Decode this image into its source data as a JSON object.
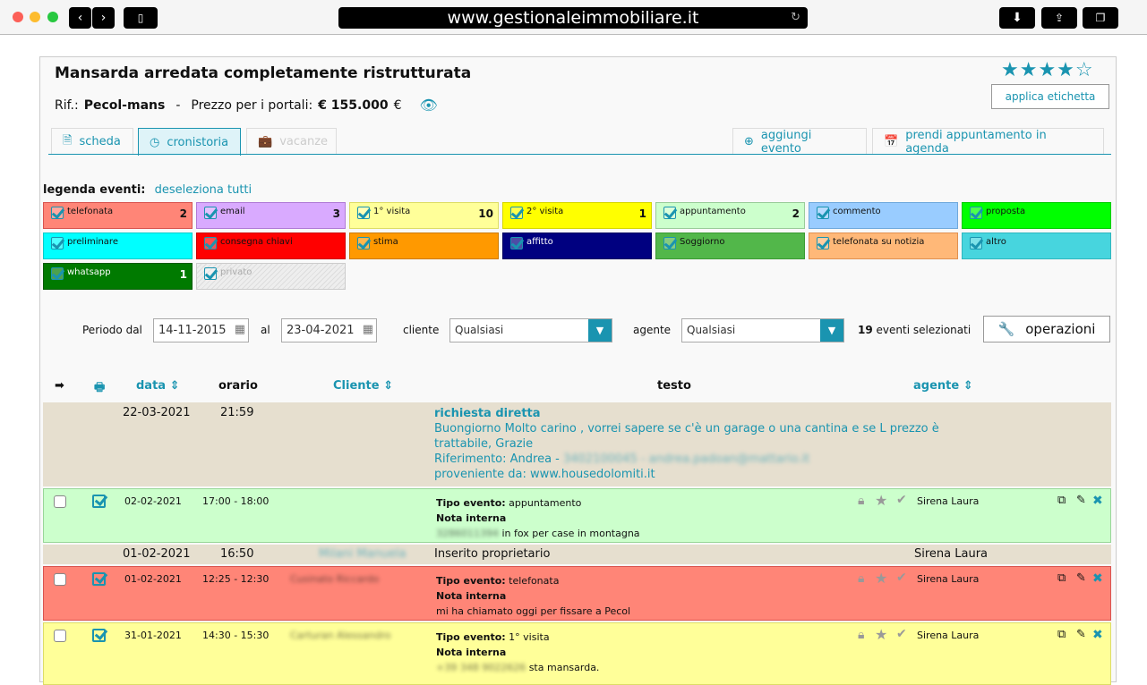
{
  "browser": {
    "url": "www.gestionaleimmobiliare.it"
  },
  "header": {
    "title": "Mansarda arredata completamente ristrutturata",
    "rif_label": "Rif.:",
    "rif": "Pecol-mans",
    "sep": "-",
    "price_label": "Prezzo per i portali:",
    "price": "€ 155.000",
    "currency": "€",
    "rating": 4,
    "rating_max": 5,
    "label_button": "applica etichetta"
  },
  "tabs": [
    {
      "label": "scheda",
      "icon": "document-icon"
    },
    {
      "label": "cronistoria",
      "icon": "clock-icon",
      "active": true
    },
    {
      "label": "vacanze",
      "icon": "suitcase-icon",
      "disabled": true
    }
  ],
  "actions": {
    "add_event": "aggiungi evento",
    "appointment": "prendi appuntamento in agenda"
  },
  "legend": {
    "title": "legenda eventi:",
    "deselect": "deseleziona tutti",
    "items": [
      {
        "label": "telefonata",
        "count": "2",
        "color": "#ff8577",
        "border": "#d9534f"
      },
      {
        "label": "email",
        "count": "3",
        "color": "#d9aaff",
        "border": "#b07ad6"
      },
      {
        "label": "1° visita",
        "count": "10",
        "color": "#ffff99",
        "border": "#dddd66"
      },
      {
        "label": "2° visita",
        "count": "1",
        "color": "#ffff00",
        "border": "#d6d600"
      },
      {
        "label": "appuntamento",
        "count": "2",
        "color": "#ccffcc",
        "border": "#99cc99"
      },
      {
        "label": "commento",
        "count": "",
        "color": "#99ccff",
        "border": "#6fa8dc"
      },
      {
        "label": "proposta",
        "count": "",
        "color": "#00ff00",
        "border": "#00cc00"
      },
      {
        "label": "preliminare",
        "count": "",
        "color": "#00ffff",
        "border": "#00cccc"
      },
      {
        "label": "consegna chiavi",
        "count": "",
        "color": "#ff0000",
        "border": "#cc0000"
      },
      {
        "label": "stima",
        "count": "",
        "color": "#ff9900",
        "border": "#cc7a00"
      },
      {
        "label": "affitto",
        "count": "",
        "color": "#000080",
        "border": "#000060",
        "text": "#fff"
      },
      {
        "label": "Soggiorno",
        "count": "",
        "color": "#52b74a",
        "border": "#3a9a33"
      },
      {
        "label": "telefonata su notizia",
        "count": "",
        "color": "#ffb878",
        "border": "#e09050"
      },
      {
        "label": "altro",
        "count": "",
        "color": "#47d5de",
        "border": "#2fb6be"
      },
      {
        "label": "whatsapp",
        "count": "1",
        "color": "#007a00",
        "border": "#005a00",
        "text": "#fff"
      },
      {
        "label": "privato",
        "count": "",
        "color": "#eeeeee",
        "border": "#cccccc",
        "text": "#aaa"
      }
    ]
  },
  "filters": {
    "period_label": "Periodo dal",
    "from": "14-11-2015",
    "to_label": "al",
    "to": "23-04-2021",
    "client_label": "cliente",
    "client": "Qualsiasi",
    "agent_label": "agente",
    "agent": "Qualsiasi",
    "count": "19",
    "count_label": "eventi selezionati",
    "operations": "operazioni"
  },
  "columns": {
    "data": "data",
    "orario": "orario",
    "cliente": "Cliente",
    "testo": "testo",
    "agente": "agente"
  },
  "rows": [
    {
      "date": "22-03-2021",
      "time": "21:59",
      "title": "richiesta diretta",
      "lines": [
        "Buongiorno Molto carino , vorrei sapere se c'è un garage o una cantina e se L prezzo è",
        "trattabile, Grazie"
      ],
      "ref": "Riferimento: Andrea -",
      "ref_blur": "3402100045 - andrea.padoan@mattario.it",
      "source": "proveniente da: www.housedolomiti.it"
    },
    {
      "date": "02-02-2021",
      "time": "17:00 - 18:00",
      "client": "",
      "type_label": "Tipo evento:",
      "type": "appuntamento",
      "note_label": "Nota interna",
      "note_blur": "3286011394",
      "note": "in fox per case in montagna",
      "agent": "Sirena Laura",
      "color": "#ccffcc",
      "border": "#99d699"
    },
    {
      "date": "01-02-2021",
      "time": "16:50",
      "client": "Milani Manuela",
      "text": "Inserito proprietario",
      "agent": "Sirena Laura"
    },
    {
      "date": "01-02-2021",
      "time": "12:25 - 12:30",
      "client": "Cusinato Riccardo",
      "type_label": "Tipo evento:",
      "type": "telefonata",
      "note_label": "Nota interna",
      "note_blur": "",
      "note": "mi ha chiamato oggi per fissare a Pecol",
      "agent": "Sirena Laura",
      "color": "#ff8577",
      "border": "#d9534f"
    },
    {
      "date": "31-01-2021",
      "time": "14:30 - 15:30",
      "client": "Carturan Alessandro",
      "type_label": "Tipo evento:",
      "type": "1° visita",
      "note_label": "Nota interna",
      "note_blur": "+39 348 9022626",
      "note": "sta mansarda.",
      "agent": "Sirena Laura",
      "color": "#ffff99",
      "border": "#dddd66"
    }
  ]
}
